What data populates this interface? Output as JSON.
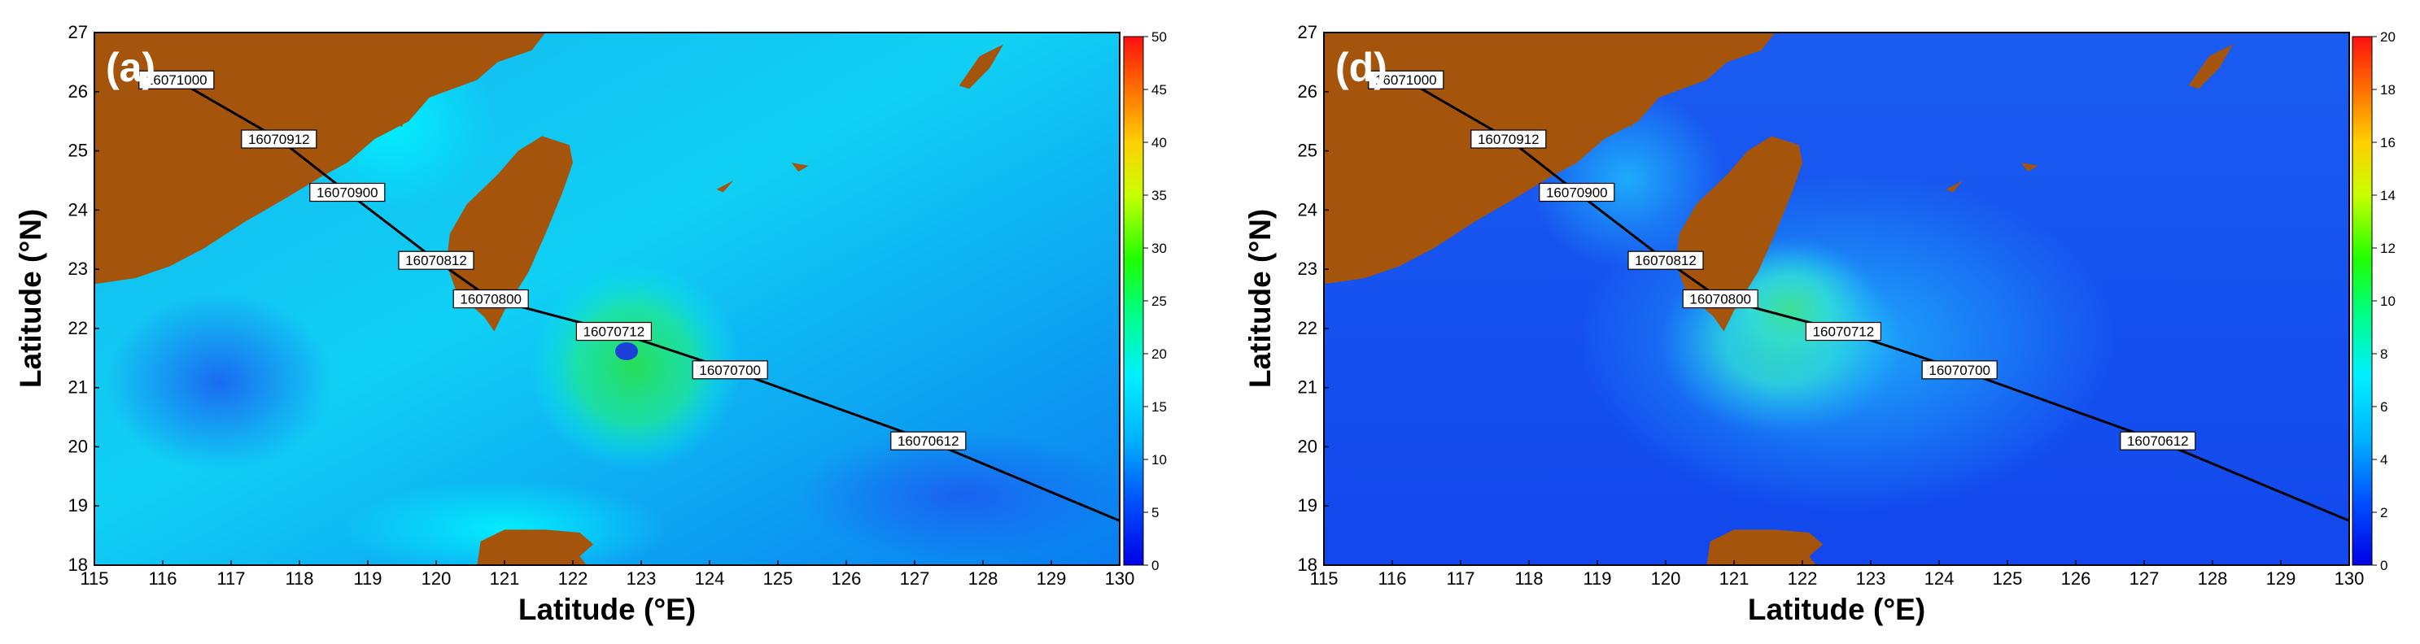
{
  "chart_data": [
    {
      "type": "heatmap",
      "panel_label": "(a)",
      "xlabel": "Latitude (°E)",
      "ylabel": "Latitude (°N)",
      "xlim": [
        115,
        130
      ],
      "ylim": [
        18,
        27
      ],
      "xticks": [
        115,
        116,
        117,
        118,
        119,
        120,
        121,
        122,
        123,
        124,
        125,
        126,
        127,
        128,
        129,
        130
      ],
      "yticks": [
        18,
        19,
        20,
        21,
        22,
        23,
        24,
        25,
        26,
        27
      ],
      "colorbar": {
        "min": 0,
        "max": 50,
        "ticks": [
          0,
          5,
          10,
          15,
          20,
          25,
          30,
          35,
          40,
          45,
          50
        ]
      },
      "typhoon_track": {
        "points": [
          {
            "label": "16071000",
            "lon": 116.2,
            "lat": 26.2
          },
          {
            "label": "16070912",
            "lon": 117.7,
            "lat": 25.2
          },
          {
            "label": "16070900",
            "lon": 118.7,
            "lat": 24.3
          },
          {
            "label": "16070812",
            "lon": 120.0,
            "lat": 23.15
          },
          {
            "label": "16070800",
            "lon": 120.8,
            "lat": 22.5
          },
          {
            "label": "16070712",
            "lon": 122.6,
            "lat": 21.95
          },
          {
            "label": "16070700",
            "lon": 124.3,
            "lat": 21.3
          },
          {
            "label": "16070612",
            "lon": 127.2,
            "lat": 20.1
          }
        ],
        "path_end": {
          "lon": 130.0,
          "lat": 18.75
        }
      }
    },
    {
      "type": "heatmap",
      "panel_label": "(d)",
      "xlabel": "Latitude (°E)",
      "ylabel": "Latitude (°N)",
      "xlim": [
        115,
        130
      ],
      "ylim": [
        18,
        27
      ],
      "xticks": [
        115,
        116,
        117,
        118,
        119,
        120,
        121,
        122,
        123,
        124,
        125,
        126,
        127,
        128,
        129,
        130
      ],
      "yticks": [
        18,
        19,
        20,
        21,
        22,
        23,
        24,
        25,
        26,
        27
      ],
      "colorbar": {
        "min": 0,
        "max": 20,
        "ticks": [
          0,
          2,
          4,
          6,
          8,
          10,
          12,
          14,
          16,
          18,
          20
        ]
      },
      "typhoon_track": {
        "points": [
          {
            "label": "16071000",
            "lon": 116.2,
            "lat": 26.2
          },
          {
            "label": "16070912",
            "lon": 117.7,
            "lat": 25.2
          },
          {
            "label": "16070900",
            "lon": 118.7,
            "lat": 24.3
          },
          {
            "label": "16070812",
            "lon": 120.0,
            "lat": 23.15
          },
          {
            "label": "16070800",
            "lon": 120.8,
            "lat": 22.5
          },
          {
            "label": "16070712",
            "lon": 122.6,
            "lat": 21.95
          },
          {
            "label": "16070700",
            "lon": 124.3,
            "lat": 21.3
          },
          {
            "label": "16070612",
            "lon": 127.2,
            "lat": 20.1
          }
        ],
        "path_end": {
          "lon": 130.0,
          "lat": 18.75
        }
      }
    }
  ],
  "colors": {
    "land": "#a5540b",
    "track": "#000000",
    "label_box": "#ffffff",
    "panel_label": "#ffffff",
    "colormap": [
      "#0000e6",
      "#0055ff",
      "#00aaff",
      "#00e8ff",
      "#00ff55",
      "#66ff00",
      "#ffff00",
      "#ffa000",
      "#ff2000"
    ]
  }
}
